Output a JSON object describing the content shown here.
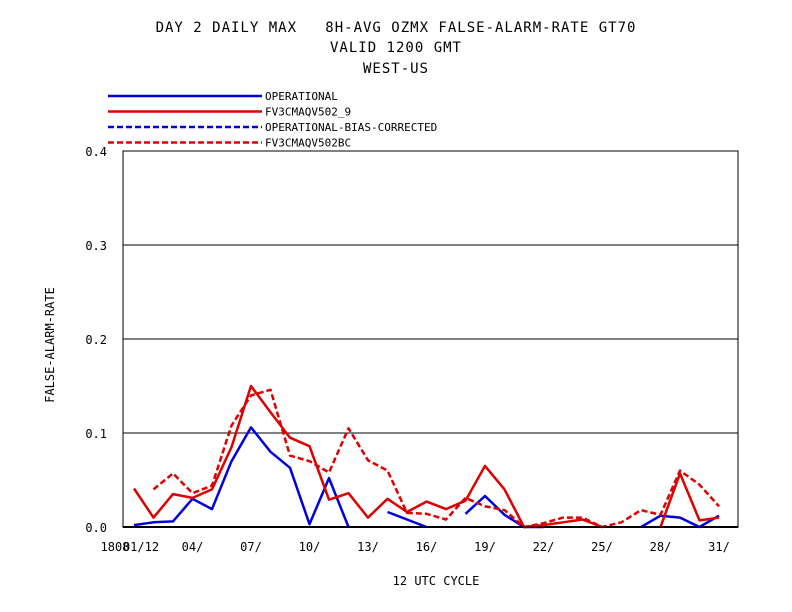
{
  "header": {
    "line1": "DAY 2 DAILY MAX   8H-AVG OZMX FALSE-ALARM-RATE GT70",
    "line2": "VALID 1200 GMT",
    "line3": "WEST-US"
  },
  "chart_data": {
    "type": "line",
    "ylabel": "FALSE-ALARM-RATE",
    "xlabel": "12 UTC CYCLE",
    "ylim": [
      0,
      0.4
    ],
    "yticks": [
      "0.0",
      "0.1",
      "0.2",
      "0.3",
      "0.4"
    ],
    "ytick_values": [
      0,
      0.1,
      0.2,
      0.3,
      0.4
    ],
    "grid": true,
    "legend_position": "top-left",
    "days": [
      1,
      2,
      3,
      4,
      5,
      6,
      7,
      8,
      9,
      10,
      11,
      12,
      13,
      14,
      15,
      16,
      17,
      18,
      19,
      20,
      21,
      22,
      23,
      24,
      25,
      26,
      27,
      28,
      29,
      30,
      31
    ],
    "xtick_labels": [
      {
        "day": 0,
        "label": "1808"
      },
      {
        "day": 1,
        "label": "01/12"
      },
      {
        "day": 4,
        "label": "04/"
      },
      {
        "day": 7,
        "label": "07/"
      },
      {
        "day": 10,
        "label": "10/"
      },
      {
        "day": 13,
        "label": "13/"
      },
      {
        "day": 16,
        "label": "16/"
      },
      {
        "day": 19,
        "label": "19/"
      },
      {
        "day": 22,
        "label": "22/"
      },
      {
        "day": 25,
        "label": "25/"
      },
      {
        "day": 28,
        "label": "28/"
      },
      {
        "day": 31,
        "label": "31/"
      }
    ],
    "series": [
      {
        "name": "OPERATIONAL",
        "color": "#0000dd",
        "dash": "solid",
        "values": [
          0.002,
          0.005,
          0.006,
          0.03,
          0.019,
          0.07,
          0.106,
          0.08,
          0.063,
          0.003,
          0.052,
          0.0,
          null,
          0.016,
          0.008,
          0.0,
          null,
          0.014,
          0.033,
          0.013,
          0.0,
          0.0,
          null,
          null,
          null,
          null,
          0.0,
          0.012,
          0.01,
          0.0,
          0.012
        ]
      },
      {
        "name": "FV3CMAQV502_9",
        "color": "#dd0000",
        "dash": "solid",
        "values": [
          0.041,
          0.01,
          0.035,
          0.031,
          0.04,
          0.085,
          0.15,
          0.122,
          0.095,
          0.086,
          0.029,
          0.036,
          0.01,
          0.03,
          0.016,
          0.027,
          0.019,
          0.028,
          0.065,
          0.04,
          0.0,
          0.002,
          0.005,
          0.008,
          0.0,
          null,
          null,
          0.0,
          0.057,
          0.007,
          0.01
        ]
      },
      {
        "name": "OPERATIONAL-BIAS-CORRECTED",
        "color": "#0000dd",
        "dash": "dashed",
        "values": [
          null,
          null,
          null,
          null,
          null,
          null,
          null,
          null,
          null,
          null,
          null,
          null,
          null,
          null,
          null,
          null,
          null,
          null,
          null,
          null,
          null,
          null,
          null,
          null,
          null,
          null,
          null,
          null,
          null,
          null,
          null
        ]
      },
      {
        "name": "FV3CMAQV502BC",
        "color": "#dd0000",
        "dash": "dashed",
        "values": [
          null,
          0.04,
          0.057,
          0.036,
          0.044,
          0.108,
          0.14,
          0.146,
          0.076,
          0.07,
          0.058,
          0.105,
          0.071,
          0.06,
          0.015,
          0.014,
          0.008,
          0.031,
          0.022,
          0.018,
          0.0,
          0.004,
          0.01,
          0.01,
          0.0,
          0.005,
          0.018,
          0.013,
          0.06,
          0.045,
          0.022
        ]
      }
    ]
  }
}
